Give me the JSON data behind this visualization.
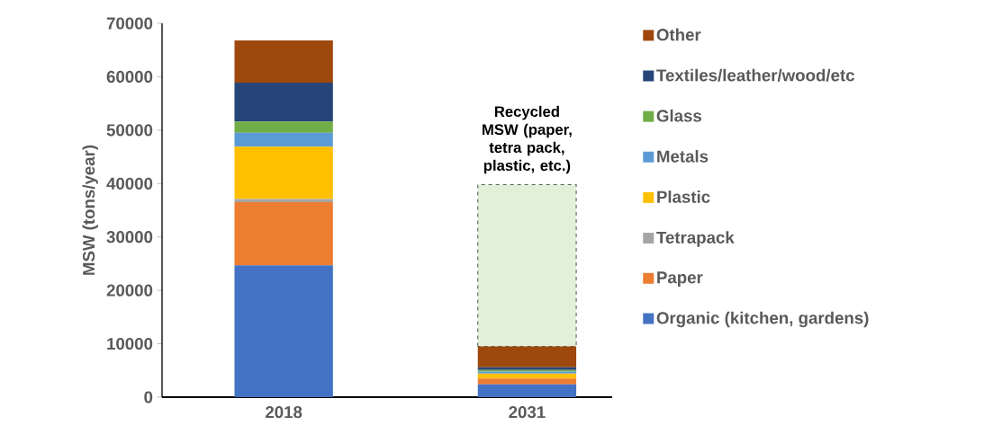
{
  "chart_data": {
    "type": "bar",
    "stacked": true,
    "ylabel": "MSW (tons/year)",
    "categories": [
      "2018",
      "2031"
    ],
    "series": [
      {
        "name": "Organic (kitchen, gardens)",
        "color": "#4472c4",
        "values": [
          24700,
          2400
        ]
      },
      {
        "name": "Paper",
        "color": "#ed7d31",
        "values": [
          11800,
          1100
        ]
      },
      {
        "name": "Tetrapack",
        "color": "#a5a5a5",
        "values": [
          600,
          null
        ]
      },
      {
        "name": "Plastic",
        "color": "#ffc000",
        "values": [
          9800,
          900
        ]
      },
      {
        "name": "Metals",
        "color": "#5b9bd5",
        "values": [
          2600,
          400
        ]
      },
      {
        "name": "Glass",
        "color": "#70ad47",
        "values": [
          2100,
          300
        ]
      },
      {
        "name": "Textiles/leather/wood/etc",
        "color": "#264478",
        "values": [
          7300,
          500
        ]
      },
      {
        "name": "Other",
        "color": "#9e480e",
        "values": [
          7900,
          3900
        ]
      },
      {
        "color": "#e2efd9",
        "values": [
          null,
          30300
        ],
        "line_style": "dashed"
      }
    ],
    "ylim": [
      0,
      70000
    ],
    "yticks": [
      0,
      10000,
      20000,
      30000,
      40000,
      50000,
      60000,
      70000
    ],
    "legend": "right",
    "grid": false,
    "annotations": [
      {
        "text": "Recycled MSW (paper, tetra pack, plastic, etc.)",
        "x": "2031",
        "y": 40000
      }
    ]
  }
}
